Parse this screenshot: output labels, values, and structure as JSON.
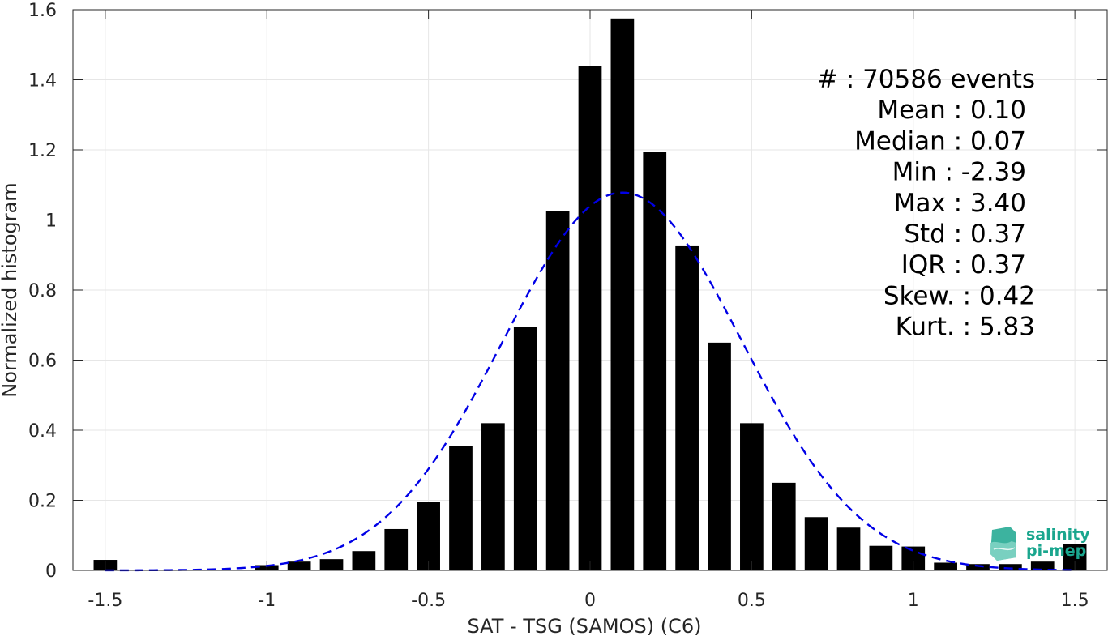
{
  "chart_data": {
    "type": "bar",
    "xlabel": "SAT - TSG (SAMOS) (C6)",
    "ylabel": "Normalized histogram",
    "xlim": [
      -1.6,
      1.6
    ],
    "ylim": [
      0,
      1.6
    ],
    "grid": true,
    "x_ticks": [
      "-1.5",
      "-1",
      "-0.5",
      "0",
      "0.5",
      "1",
      "1.5"
    ],
    "x_tick_values": [
      -1.5,
      -1,
      -0.5,
      0,
      0.5,
      1,
      1.5
    ],
    "y_ticks": [
      "0",
      "0.2",
      "0.4",
      "0.6",
      "0.8",
      "1",
      "1.2",
      "1.4",
      "1.6"
    ],
    "y_tick_values": [
      0,
      0.2,
      0.4,
      0.6,
      0.8,
      1,
      1.2,
      1.4,
      1.6
    ],
    "bin_width": 0.1,
    "bin_centers": [
      -1.5,
      -1.4,
      -1.3,
      -1.2,
      -1.1,
      -1.0,
      -0.9,
      -0.8,
      -0.7,
      -0.6,
      -0.5,
      -0.4,
      -0.3,
      -0.2,
      -0.1,
      0.0,
      0.1,
      0.2,
      0.3,
      0.4,
      0.5,
      0.6,
      0.7,
      0.8,
      0.9,
      1.0,
      1.1,
      1.2,
      1.3,
      1.4,
      1.5
    ],
    "values": [
      0.03,
      0.0,
      0.0,
      0.0,
      0.0,
      0.015,
      0.025,
      0.032,
      0.055,
      0.118,
      0.195,
      0.355,
      0.42,
      0.695,
      1.025,
      1.44,
      1.575,
      1.195,
      0.925,
      0.65,
      0.42,
      0.25,
      0.152,
      0.122,
      0.07,
      0.068,
      0.022,
      0.018,
      0.018,
      0.025,
      0.075
    ],
    "bar_color": "#000000",
    "series": [
      {
        "type": "line",
        "style": "dashed",
        "color": "#0000e6",
        "distribution": "normal",
        "mean": 0.1,
        "std": 0.37,
        "x_range": [
          -1.5,
          1.5
        ]
      }
    ],
    "stats": [
      {
        "label": "#  : 70586 events"
      },
      {
        "label": "Mean : 0.10"
      },
      {
        "label": "Median : 0.07"
      },
      {
        "label": "Min : -2.39"
      },
      {
        "label": "Max : 3.40"
      },
      {
        "label": "Std : 0.37"
      },
      {
        "label": "IQR : 0.37"
      },
      {
        "label": "Skew. : 0.42"
      },
      {
        "label": "Kurt. : 5.83"
      }
    ]
  },
  "logo": {
    "line1": "salinity",
    "line2": "pi-mep",
    "color": "#1aa68e"
  }
}
